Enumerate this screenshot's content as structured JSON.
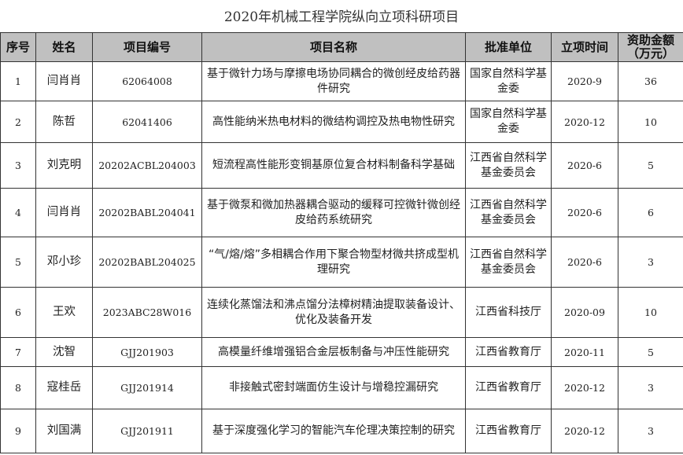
{
  "title": "2020年机械工程学院纵向立项科研项目",
  "headers": [
    "序号",
    "姓名",
    "项目编号",
    "项目名称",
    "批准单位",
    "立项时间",
    "资助金额（万元）"
  ],
  "rows": [
    {
      "no": "1",
      "name": "闫肖肖",
      "code": "62064008",
      "project": "基于微针力场与摩擦电场协同耦合的微创经皮给药器件研究",
      "agency": "国家自然科学基金委",
      "date": "2020-9",
      "amount": "36"
    },
    {
      "no": "2",
      "name": "陈哲",
      "code": "62041406",
      "project": "高性能纳米热电材料的微结构调控及热电物性研究",
      "agency": "国家自然科学基金委",
      "date": "2020-12",
      "amount": "10"
    },
    {
      "no": "3",
      "name": "刘克明",
      "code": "20202ACBL204003",
      "project": "短流程高性能形变铜基原位复合材料制备科学基础",
      "agency": "江西省自然科学基金委员会",
      "date": "2020-6",
      "amount": "5"
    },
    {
      "no": "4",
      "name": "闫肖肖",
      "code": "20202BABL204041",
      "project": "基于微泵和微加热器耦合驱动的缓释可控微针微创经皮给药系统研究",
      "agency": "江西省自然科学基金委员会",
      "date": "2020-6",
      "amount": "6"
    },
    {
      "no": "5",
      "name": "邓小珍",
      "code": "20202BABL204025",
      "project": "“气/熔/熔”多相耦合作用下聚合物型材微共挤成型机理研究",
      "agency": "江西省自然科学基金委员会",
      "date": "2020-6",
      "amount": "3"
    },
    {
      "no": "6",
      "name": "王欢",
      "code": "2023ABC28W016",
      "project": "连续化蒸馏法和沸点馏分法樟树精油提取装备设计、优化及装备开发",
      "agency": "江西省科技厅",
      "date": "2020-09",
      "amount": "10"
    },
    {
      "no": "7",
      "name": "沈智",
      "code": "GJJ201903",
      "project": "高模量纤维增强铝合金层板制备与冲压性能研究",
      "agency": "江西省教育厅",
      "date": "2020-11",
      "amount": "5"
    },
    {
      "no": "8",
      "name": "寇桂岳",
      "code": "GJJ201914",
      "project": "非接触式密封端面仿生设计与增稳控漏研究",
      "agency": "江西省教育厅",
      "date": "2020-12",
      "amount": "3"
    },
    {
      "no": "9",
      "name": "刘国满",
      "code": "GJJ201911",
      "project": "基于深度强化学习的智能汽车伦理决策控制的研究",
      "agency": "江西省教育厅",
      "date": "2020-12",
      "amount": "3"
    }
  ]
}
